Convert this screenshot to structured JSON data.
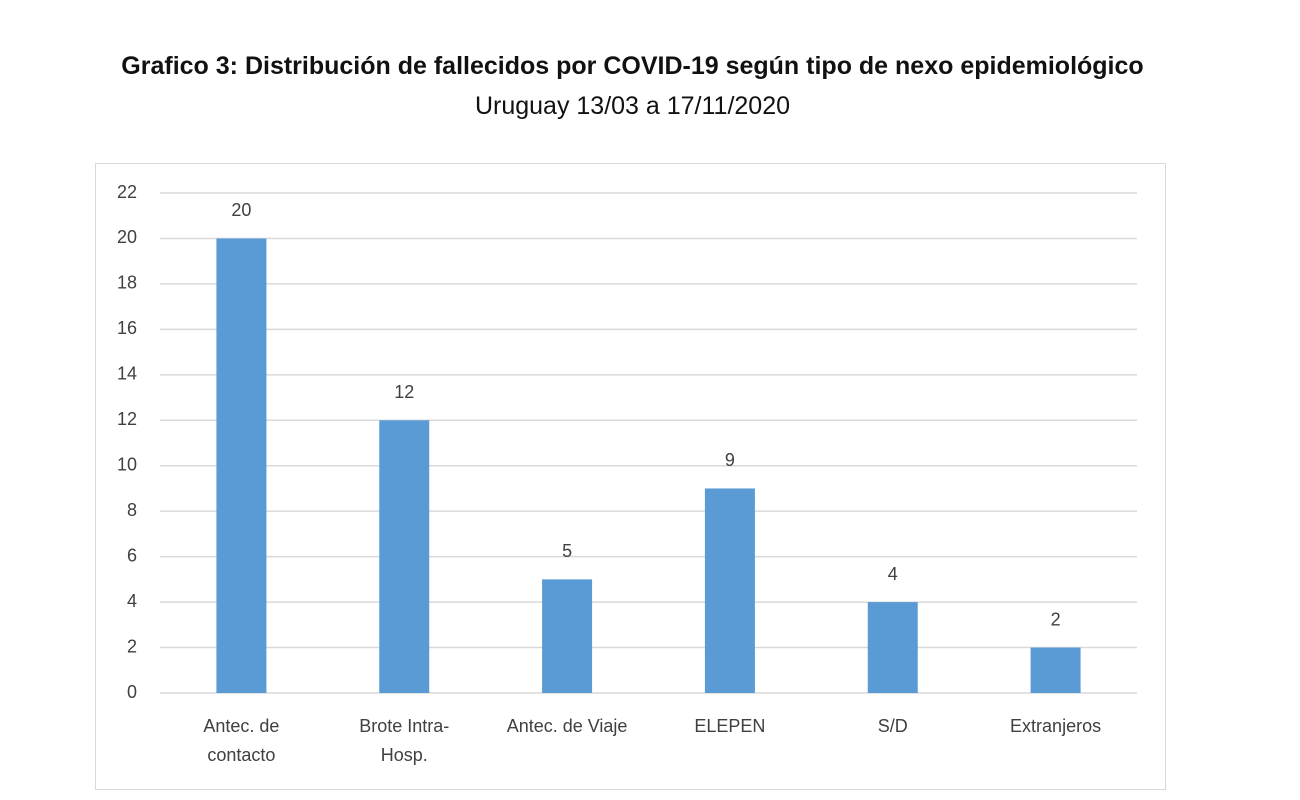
{
  "chart_data": {
    "type": "bar",
    "title": "Grafico 3: Distribución de fallecidos por COVID-19 según tipo de nexo epidemiológico",
    "subtitle": "Uruguay 13/03 a 17/11/2020",
    "categories": [
      "Antec. de\ncontacto",
      "Brote Intra-\nHosp.",
      "Antec. de  Viaje",
      "ELEPEN",
      "S/D",
      "Extranjeros"
    ],
    "values": [
      20,
      12,
      5,
      9,
      4,
      2
    ],
    "color": "#5b9bd5",
    "ylim": [
      0,
      22
    ],
    "yticks": [
      0,
      2,
      4,
      6,
      8,
      10,
      12,
      14,
      16,
      18,
      20,
      22
    ],
    "grid": true
  }
}
